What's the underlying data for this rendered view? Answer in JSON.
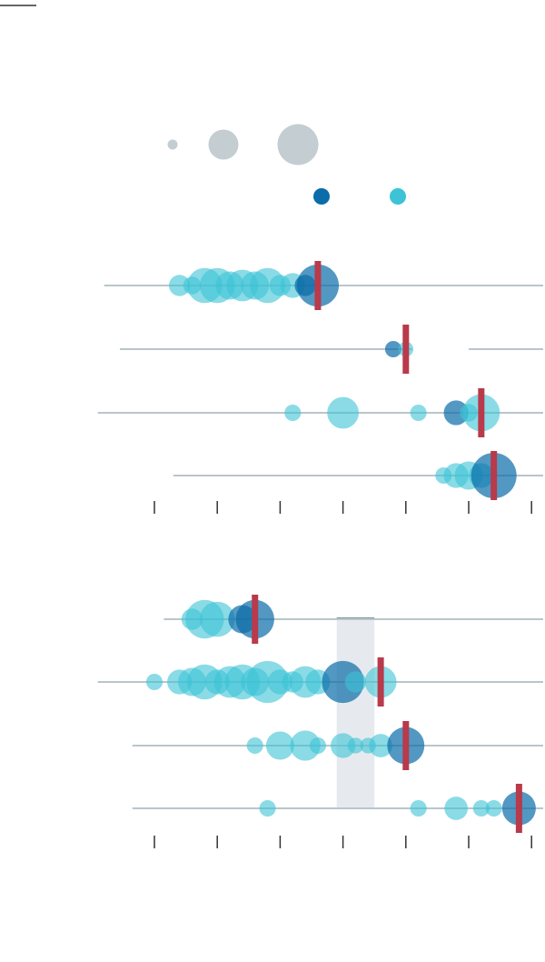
{
  "colors": {
    "dark": "#0a6ca8",
    "light": "#3cc3d6",
    "size_legend": "#c4cdd2",
    "line": "#b9c6cb",
    "marker": "#b83a4b",
    "band": "#e6eaee",
    "tick": "#333333",
    "rule": "#333333"
  },
  "chart_data": [
    {
      "type": "scatter",
      "panel": "top",
      "x_ticks": [
        0,
        1,
        2,
        3,
        4,
        5,
        6
      ],
      "size_legend": [
        1,
        3,
        5
      ],
      "color_legend": [
        "dark",
        "light"
      ],
      "rows": [
        {
          "line": [
            -0.8,
            6.2
          ],
          "marker": 2.6,
          "points": [
            {
              "x": 0.4,
              "s": 1.5,
              "c": "light"
            },
            {
              "x": 0.6,
              "s": 1,
              "c": "light"
            },
            {
              "x": 0.8,
              "s": 3.5,
              "c": "light"
            },
            {
              "x": 1.0,
              "s": 3.5,
              "c": "light"
            },
            {
              "x": 1.2,
              "s": 2.5,
              "c": "light"
            },
            {
              "x": 1.4,
              "s": 3.0,
              "c": "light"
            },
            {
              "x": 1.6,
              "s": 2.5,
              "c": "light"
            },
            {
              "x": 1.8,
              "s": 3.5,
              "c": "light"
            },
            {
              "x": 2.0,
              "s": 1.5,
              "c": "light"
            },
            {
              "x": 2.2,
              "s": 2,
              "c": "light"
            },
            {
              "x": 2.4,
              "s": 1.5,
              "c": "dark"
            },
            {
              "x": 2.6,
              "s": 4.5,
              "c": "dark"
            }
          ]
        },
        {
          "line": [
            -0.55,
            4.1
          ],
          "line2": [
            5.0,
            6.2
          ],
          "marker": 4.0,
          "points": [
            {
              "x": 3.8,
              "s": 0.8,
              "c": "dark"
            },
            {
              "x": 4.0,
              "s": 0.6,
              "c": "light"
            }
          ]
        },
        {
          "line": [
            -0.9,
            6.2
          ],
          "marker": 5.2,
          "points": [
            {
              "x": 2.2,
              "s": 0.8,
              "c": "light"
            },
            {
              "x": 3.0,
              "s": 3.0,
              "c": "light"
            },
            {
              "x": 4.2,
              "s": 0.8,
              "c": "light"
            },
            {
              "x": 4.8,
              "s": 2.0,
              "c": "dark"
            },
            {
              "x": 5.0,
              "s": 1,
              "c": "light"
            },
            {
              "x": 5.2,
              "s": 3.8,
              "c": "light"
            }
          ]
        },
        {
          "line": [
            0.3,
            6.2
          ],
          "marker": 5.4,
          "points": [
            {
              "x": 4.6,
              "s": 0.8,
              "c": "light"
            },
            {
              "x": 4.8,
              "s": 2,
              "c": "light"
            },
            {
              "x": 5.0,
              "s": 2.5,
              "c": "light"
            },
            {
              "x": 5.2,
              "s": 2,
              "c": "light"
            },
            {
              "x": 5.4,
              "s": 5,
              "c": "dark"
            }
          ]
        }
      ]
    },
    {
      "type": "scatter",
      "panel": "bottom",
      "x_ticks": [
        0,
        1,
        2,
        3,
        4,
        5,
        6
      ],
      "band": [
        2.9,
        3.5
      ],
      "rows": [
        {
          "line": [
            0.15,
            6.2
          ],
          "marker": 1.6,
          "points": [
            {
              "x": 0.6,
              "s": 1.5,
              "c": "light"
            },
            {
              "x": 0.8,
              "s": 4.0,
              "c": "light"
            },
            {
              "x": 1.0,
              "s": 3.5,
              "c": "light"
            },
            {
              "x": 1.4,
              "s": 2.5,
              "c": "dark"
            },
            {
              "x": 1.6,
              "s": 4,
              "c": "dark"
            }
          ]
        },
        {
          "line": [
            -0.9,
            6.2
          ],
          "marker": 3.6,
          "points": [
            {
              "x": 0.0,
              "s": 0.8,
              "c": "light"
            },
            {
              "x": 0.4,
              "s": 2,
              "c": "light"
            },
            {
              "x": 0.6,
              "s": 2.5,
              "c": "light"
            },
            {
              "x": 0.8,
              "s": 3.5,
              "c": "light"
            },
            {
              "x": 1.0,
              "s": 2,
              "c": "light"
            },
            {
              "x": 1.2,
              "s": 3,
              "c": "light"
            },
            {
              "x": 1.4,
              "s": 3.5,
              "c": "light"
            },
            {
              "x": 1.6,
              "s": 2.5,
              "c": "light"
            },
            {
              "x": 1.8,
              "s": 4.5,
              "c": "light"
            },
            {
              "x": 2.0,
              "s": 2,
              "c": "light"
            },
            {
              "x": 2.2,
              "s": 1.5,
              "c": "light"
            },
            {
              "x": 2.4,
              "s": 3,
              "c": "light"
            },
            {
              "x": 2.6,
              "s": 2,
              "c": "light"
            },
            {
              "x": 3.0,
              "s": 4.5,
              "c": "dark"
            },
            {
              "x": 3.2,
              "s": 1.5,
              "c": "light"
            },
            {
              "x": 3.6,
              "s": 3,
              "c": "light"
            }
          ]
        },
        {
          "line": [
            -0.35,
            6.2
          ],
          "marker": 4.0,
          "points": [
            {
              "x": 1.6,
              "s": 0.8,
              "c": "light"
            },
            {
              "x": 2.0,
              "s": 2.5,
              "c": "light"
            },
            {
              "x": 2.4,
              "s": 2.8,
              "c": "light"
            },
            {
              "x": 2.6,
              "s": 0.8,
              "c": "light"
            },
            {
              "x": 3.0,
              "s": 2,
              "c": "light"
            },
            {
              "x": 3.2,
              "s": 0.7,
              "c": "light"
            },
            {
              "x": 3.4,
              "s": 0.7,
              "c": "light"
            },
            {
              "x": 3.6,
              "s": 1.8,
              "c": "light"
            },
            {
              "x": 4.0,
              "s": 3.8,
              "c": "dark"
            }
          ]
        },
        {
          "line": [
            -0.35,
            6.2
          ],
          "marker": 5.8,
          "points": [
            {
              "x": 1.8,
              "s": 0.8,
              "c": "light"
            },
            {
              "x": 4.2,
              "s": 0.8,
              "c": "light"
            },
            {
              "x": 4.8,
              "s": 1.8,
              "c": "light"
            },
            {
              "x": 5.2,
              "s": 0.8,
              "c": "light"
            },
            {
              "x": 5.4,
              "s": 0.8,
              "c": "light"
            },
            {
              "x": 5.8,
              "s": 3.3,
              "c": "dark"
            }
          ]
        }
      ]
    }
  ]
}
